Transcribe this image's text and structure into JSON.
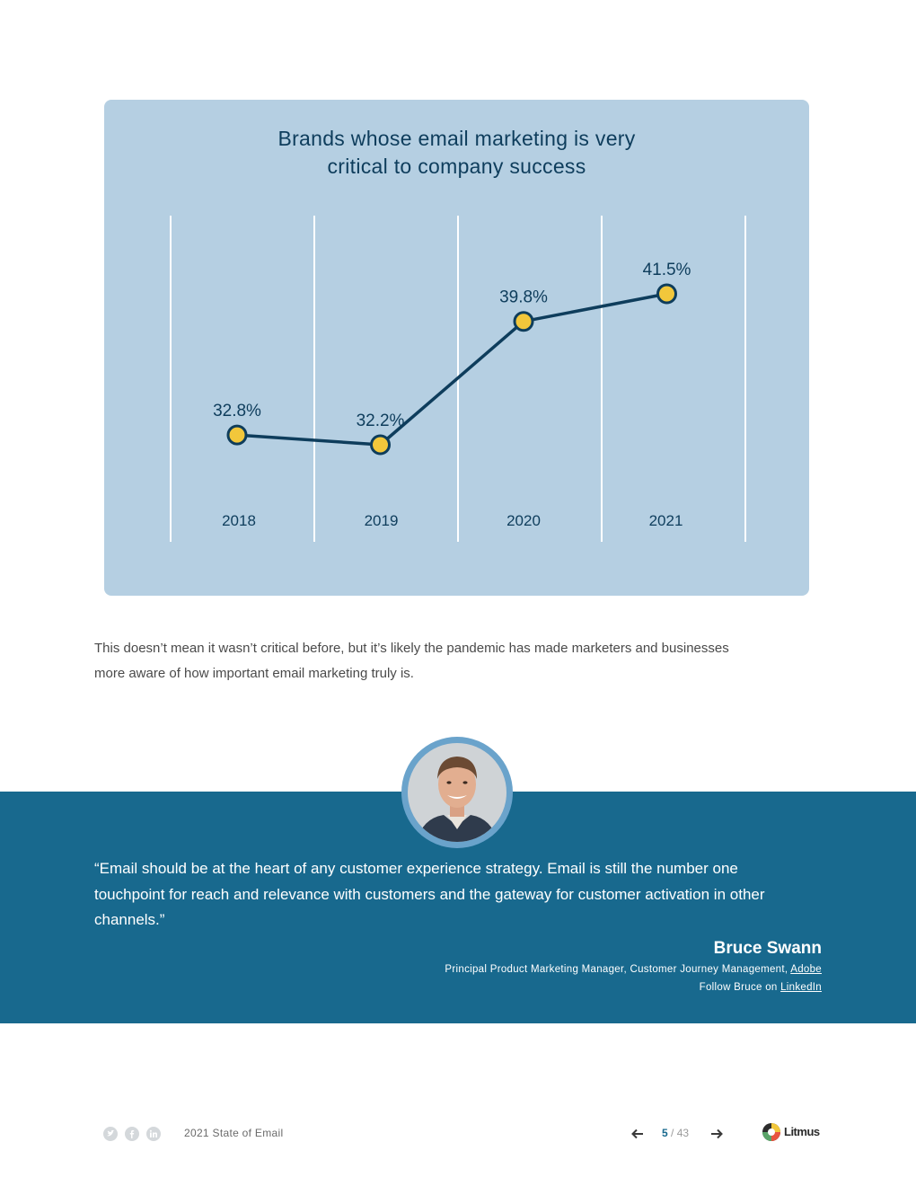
{
  "chart_data": {
    "type": "line",
    "title": "Brands whose email marketing is very critical to company success",
    "title_lines": [
      "Brands whose email marketing is very",
      "critical to company success"
    ],
    "categories": [
      "2018",
      "2019",
      "2020",
      "2021"
    ],
    "values": [
      32.8,
      32.2,
      39.8,
      41.5
    ],
    "data_labels": [
      "32.8%",
      "32.2%",
      "39.8%",
      "41.5%"
    ],
    "unit": "%",
    "grid": true,
    "colors": {
      "background": "#b5cfe2",
      "line": "#0e3d5c",
      "marker": "#f2c73b",
      "grid": "#ffffff"
    }
  },
  "body_text": {
    "lines": [
      "This doesn’t mean it wasn’t critical before, but it’s likely the pandemic has made marketers and businesses",
      "more aware of how important email marketing truly is."
    ]
  },
  "testimonial": {
    "quote_lines": [
      "“Email should be at the heart of any customer experience strategy. Email is still the number one",
      "touchpoint for reach and relevance with customers and the gateway for customer activation in other",
      "channels.”"
    ],
    "author_name": "Bruce Swann",
    "author_role": "Principal Product Marketing Manager, Customer Journey Management,",
    "company_link": "Adobe",
    "follow_text": "Follow Bruce on",
    "follow_link": "LinkedIn",
    "band_color": "#18698e"
  },
  "footer": {
    "social_icons": [
      "twitter-icon",
      "facebook-icon",
      "linkedin-icon"
    ],
    "doc_title": "2021 State of Email",
    "current_page": "5",
    "page_separator": "/",
    "total_pages": "43",
    "logo_text": "Litmus"
  }
}
